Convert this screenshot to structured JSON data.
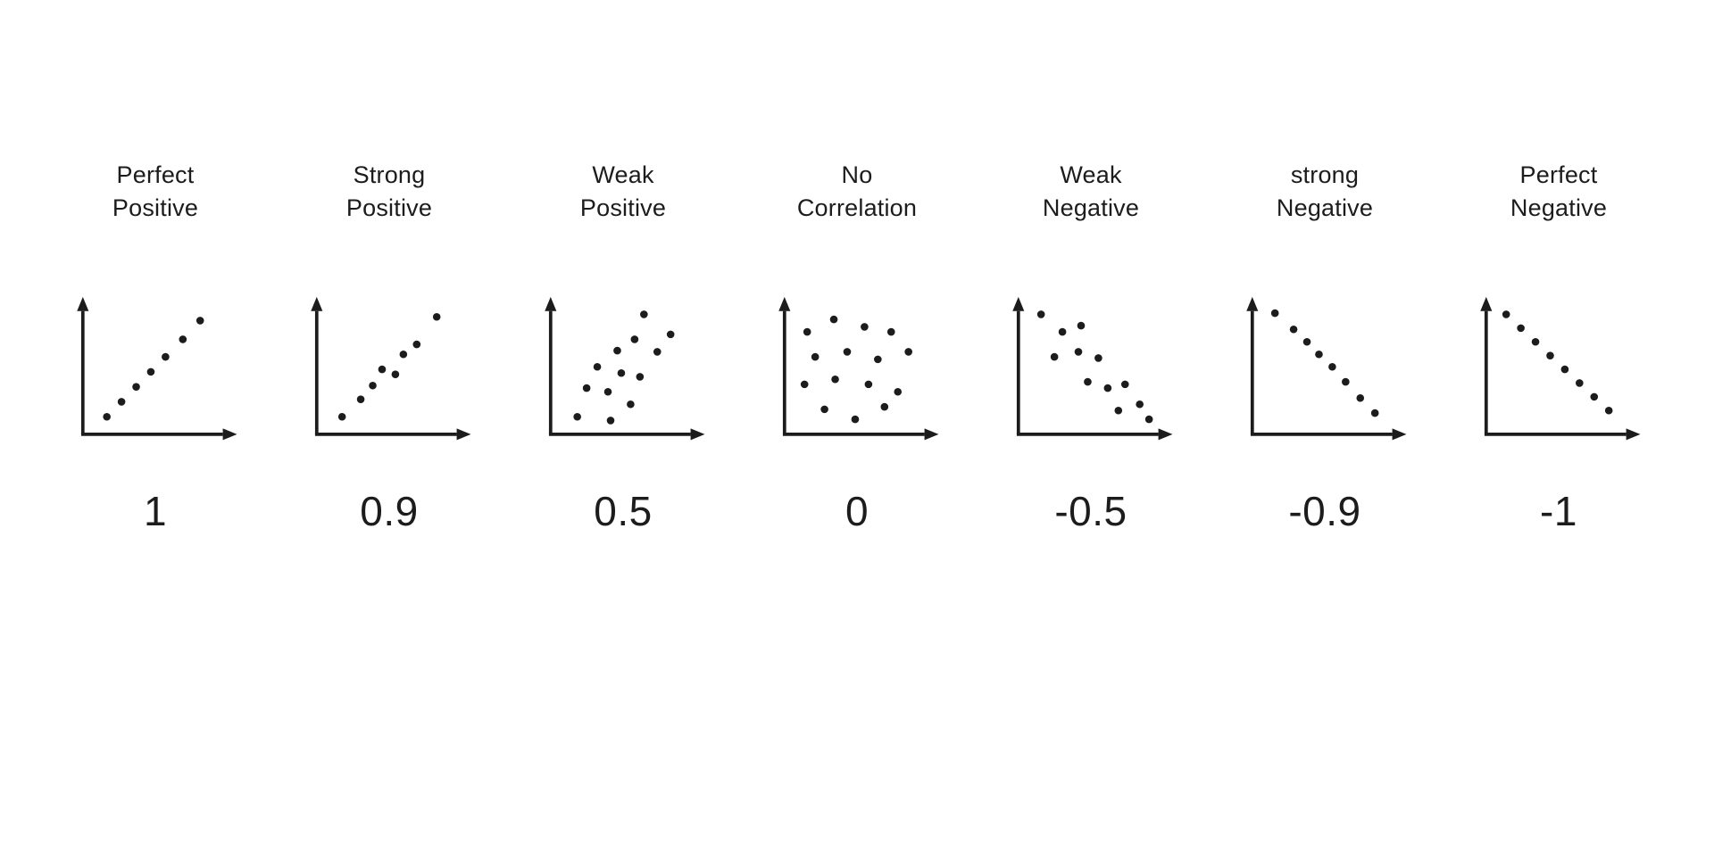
{
  "page": {
    "background": "#ffffff"
  },
  "style": {
    "dot_color": "#1c1c1c",
    "axis_color": "#1c1c1c",
    "text_color": "#1c1c1c",
    "dot_radius": 4.6
  },
  "chart_data": [
    {
      "type": "scatter",
      "title_lines": [
        "Perfect",
        "Positive"
      ],
      "coefficient": "1",
      "x_range": [
        0,
        1
      ],
      "y_range": [
        0,
        1
      ],
      "grid": false,
      "points": [
        [
          0.13,
          0.1
        ],
        [
          0.24,
          0.22
        ],
        [
          0.35,
          0.34
        ],
        [
          0.46,
          0.46
        ],
        [
          0.57,
          0.58
        ],
        [
          0.7,
          0.72
        ],
        [
          0.83,
          0.87
        ]
      ]
    },
    {
      "type": "scatter",
      "title_lines": [
        "Strong",
        "Positive"
      ],
      "coefficient": "0.9",
      "x_range": [
        0,
        1
      ],
      "y_range": [
        0,
        1
      ],
      "grid": false,
      "points": [
        [
          0.14,
          0.1
        ],
        [
          0.28,
          0.24
        ],
        [
          0.37,
          0.35
        ],
        [
          0.44,
          0.48
        ],
        [
          0.54,
          0.44
        ],
        [
          0.6,
          0.6
        ],
        [
          0.7,
          0.68
        ],
        [
          0.85,
          0.9
        ]
      ]
    },
    {
      "type": "scatter",
      "title_lines": [
        "Weak",
        "Positive"
      ],
      "coefficient": "0.5",
      "x_range": [
        0,
        1
      ],
      "y_range": [
        0,
        1
      ],
      "grid": false,
      "points": [
        [
          0.15,
          0.1
        ],
        [
          0.4,
          0.07
        ],
        [
          0.55,
          0.2
        ],
        [
          0.22,
          0.33
        ],
        [
          0.38,
          0.3
        ],
        [
          0.3,
          0.5
        ],
        [
          0.48,
          0.45
        ],
        [
          0.62,
          0.42
        ],
        [
          0.45,
          0.63
        ],
        [
          0.58,
          0.72
        ],
        [
          0.75,
          0.62
        ],
        [
          0.65,
          0.92
        ],
        [
          0.85,
          0.76
        ]
      ]
    },
    {
      "type": "scatter",
      "title_lines": [
        "No",
        "Correlation"
      ],
      "coefficient": "0",
      "x_range": [
        0,
        1
      ],
      "y_range": [
        0,
        1
      ],
      "grid": false,
      "points": [
        [
          0.12,
          0.78
        ],
        [
          0.32,
          0.88
        ],
        [
          0.55,
          0.82
        ],
        [
          0.75,
          0.78
        ],
        [
          0.18,
          0.58
        ],
        [
          0.42,
          0.62
        ],
        [
          0.65,
          0.56
        ],
        [
          0.88,
          0.62
        ],
        [
          0.1,
          0.36
        ],
        [
          0.33,
          0.4
        ],
        [
          0.58,
          0.36
        ],
        [
          0.8,
          0.3
        ],
        [
          0.25,
          0.16
        ],
        [
          0.48,
          0.08
        ],
        [
          0.7,
          0.18
        ]
      ]
    },
    {
      "type": "scatter",
      "title_lines": [
        "Weak",
        "Negative"
      ],
      "coefficient": "-0.5",
      "x_range": [
        0,
        1
      ],
      "y_range": [
        0,
        1
      ],
      "grid": false,
      "points": [
        [
          0.12,
          0.92
        ],
        [
          0.28,
          0.78
        ],
        [
          0.42,
          0.83
        ],
        [
          0.22,
          0.58
        ],
        [
          0.4,
          0.62
        ],
        [
          0.55,
          0.57
        ],
        [
          0.47,
          0.38
        ],
        [
          0.62,
          0.33
        ],
        [
          0.75,
          0.36
        ],
        [
          0.7,
          0.15
        ],
        [
          0.86,
          0.2
        ],
        [
          0.93,
          0.08
        ]
      ]
    },
    {
      "type": "scatter",
      "title_lines": [
        "strong",
        "Negative"
      ],
      "coefficient": "-0.9",
      "x_range": [
        0,
        1
      ],
      "y_range": [
        0,
        1
      ],
      "grid": false,
      "points": [
        [
          0.12,
          0.93
        ],
        [
          0.26,
          0.8
        ],
        [
          0.36,
          0.7
        ],
        [
          0.45,
          0.6
        ],
        [
          0.55,
          0.5
        ],
        [
          0.65,
          0.38
        ],
        [
          0.76,
          0.25
        ],
        [
          0.87,
          0.13
        ]
      ]
    },
    {
      "type": "scatter",
      "title_lines": [
        "Perfect",
        "Negative"
      ],
      "coefficient": "-1",
      "x_range": [
        0,
        1
      ],
      "y_range": [
        0,
        1
      ],
      "grid": false,
      "points": [
        [
          0.1,
          0.92
        ],
        [
          0.21,
          0.81
        ],
        [
          0.32,
          0.7
        ],
        [
          0.43,
          0.59
        ],
        [
          0.54,
          0.48
        ],
        [
          0.65,
          0.37
        ],
        [
          0.76,
          0.26
        ],
        [
          0.87,
          0.15
        ]
      ]
    }
  ]
}
